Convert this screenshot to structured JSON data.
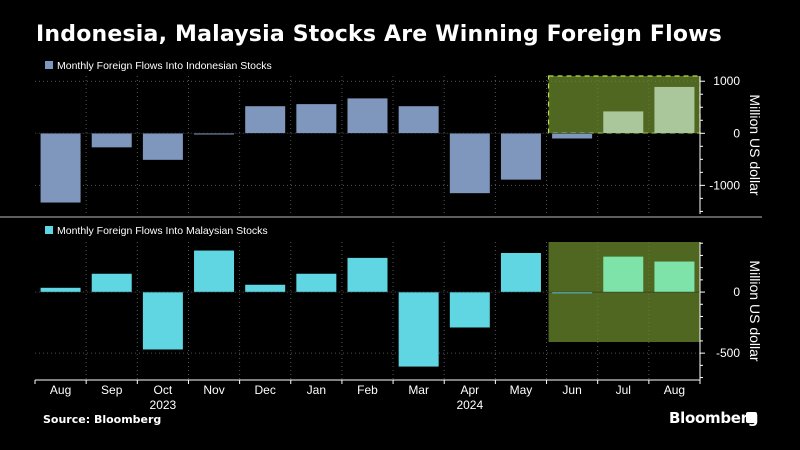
{
  "title": "Indonesia, Malaysia Stocks Are Winning Foreign Flows",
  "source": "Source: Bloomberg",
  "brand": "Bloomberg",
  "colors": {
    "indonesia": "#7f96bd",
    "malaysia": "#5fd6e2",
    "highlight_fill": "#6b8a2c",
    "highlight_indonesia_bar": "#a9c79a",
    "highlight_malaysia_bar": "#7ee3a8",
    "background": "#000000",
    "axis": "#ffffff",
    "grid": "#555555"
  },
  "chart_data": [
    {
      "type": "bar",
      "legend": "Monthly Foreign Flows Into Indonesian Stocks",
      "ylabel": "Million US dollar",
      "ylim": [
        -1550,
        1100
      ],
      "yticks": [
        1000,
        0,
        -1000
      ],
      "categories": [
        "Aug",
        "Sep",
        "Oct",
        "Nov",
        "Dec",
        "Jan",
        "Feb",
        "Mar",
        "Apr",
        "May",
        "Jun",
        "Jul",
        "Aug"
      ],
      "values": [
        -1330,
        -270,
        -510,
        -20,
        520,
        560,
        670,
        520,
        -1150,
        -890,
        -100,
        420,
        890
      ],
      "highlight_categories": [
        "Jul",
        "Aug"
      ],
      "highlight_region": "Jun–Aug",
      "grid": true,
      "legend_position": "top-left"
    },
    {
      "type": "bar",
      "legend": "Monthly Foreign Flows Into Malaysian Stocks",
      "ylabel": "Million US dollar",
      "ylim": [
        -720,
        410
      ],
      "yticks": [
        0,
        -500
      ],
      "categories": [
        "Aug",
        "Sep",
        "Oct",
        "Nov",
        "Dec",
        "Jan",
        "Feb",
        "Mar",
        "Apr",
        "May",
        "Jun",
        "Jul",
        "Aug"
      ],
      "values": [
        35,
        150,
        -470,
        340,
        60,
        150,
        280,
        -610,
        -290,
        320,
        -10,
        290,
        250
      ],
      "highlight_categories": [
        "Jul",
        "Aug"
      ],
      "highlight_region": "Jun–Aug",
      "grid": true,
      "legend_position": "top-left"
    }
  ],
  "x_axis": {
    "years": [
      {
        "label": "2023",
        "under": "Oct"
      },
      {
        "label": "2024",
        "under": "Apr"
      }
    ]
  }
}
